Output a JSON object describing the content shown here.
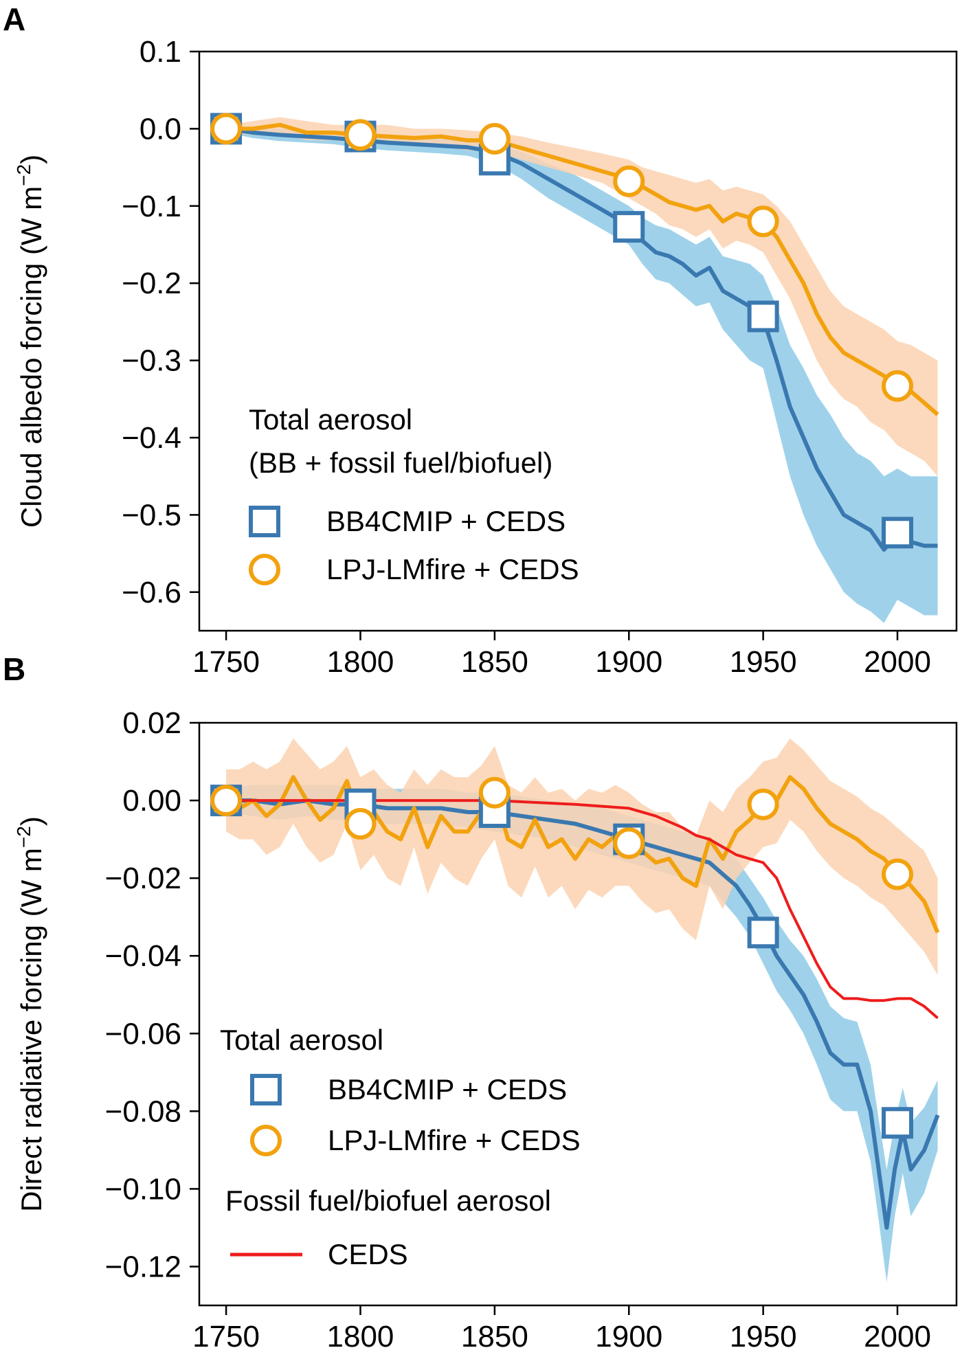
{
  "chart_data": [
    {
      "panel": "A",
      "type": "line",
      "ylabel": "Cloud albedo forcing (W m−2)",
      "ylabel_main": "Cloud albedo forcing (W m",
      "ylabel_unit_sup": "−2",
      "ylabel_close": ")",
      "xlim": [
        1740,
        2022
      ],
      "ylim": [
        -0.65,
        0.1
      ],
      "xticks": [
        1750,
        1800,
        1850,
        1900,
        1950,
        2000
      ],
      "xtick_labels": [
        "1750",
        "1800",
        "1850",
        "1900",
        "1950",
        "2000"
      ],
      "yticks": [
        0.1,
        0.0,
        -0.1,
        -0.2,
        -0.3,
        -0.4,
        -0.5,
        -0.6
      ],
      "ytick_labels": [
        "0.1",
        "0.0",
        "−0.1",
        "−0.2",
        "−0.3",
        "−0.4",
        "−0.5",
        "−0.6"
      ],
      "legend_title": [
        "Total aerosol",
        "(BB + fossil fuel/biofuel)"
      ],
      "series": [
        {
          "name": "BB4CMIP + CEDS",
          "color": "#3a78b0",
          "band_color": "#8ecae6",
          "marker": "square",
          "x": [
            1750,
            1760,
            1770,
            1780,
            1790,
            1800,
            1810,
            1820,
            1830,
            1840,
            1850,
            1860,
            1870,
            1880,
            1890,
            1900,
            1905,
            1910,
            1915,
            1920,
            1925,
            1930,
            1935,
            1940,
            1945,
            1950,
            1955,
            1960,
            1965,
            1970,
            1975,
            1980,
            1985,
            1990,
            1995,
            2000,
            2005,
            2010,
            2015
          ],
          "values": [
            0.0,
            -0.005,
            -0.008,
            -0.01,
            -0.012,
            -0.015,
            -0.018,
            -0.02,
            -0.022,
            -0.024,
            -0.03,
            -0.045,
            -0.065,
            -0.085,
            -0.105,
            -0.125,
            -0.145,
            -0.16,
            -0.165,
            -0.175,
            -0.19,
            -0.18,
            -0.21,
            -0.22,
            -0.23,
            -0.245,
            -0.3,
            -0.36,
            -0.4,
            -0.44,
            -0.47,
            -0.5,
            -0.51,
            -0.52,
            -0.545,
            -0.525,
            -0.535,
            -0.54,
            -0.54
          ],
          "upper": [
            0.0,
            0.0,
            0.0,
            -0.002,
            -0.004,
            -0.006,
            -0.008,
            -0.01,
            -0.012,
            -0.014,
            -0.02,
            -0.03,
            -0.045,
            -0.06,
            -0.08,
            -0.1,
            -0.115,
            -0.125,
            -0.13,
            -0.14,
            -0.15,
            -0.14,
            -0.165,
            -0.17,
            -0.175,
            -0.19,
            -0.23,
            -0.28,
            -0.31,
            -0.345,
            -0.37,
            -0.4,
            -0.42,
            -0.43,
            -0.45,
            -0.44,
            -0.45,
            -0.45,
            -0.45
          ],
          "lower": [
            -0.005,
            -0.012,
            -0.016,
            -0.018,
            -0.02,
            -0.025,
            -0.028,
            -0.03,
            -0.032,
            -0.035,
            -0.045,
            -0.065,
            -0.09,
            -0.11,
            -0.13,
            -0.15,
            -0.175,
            -0.195,
            -0.2,
            -0.215,
            -0.23,
            -0.225,
            -0.26,
            -0.28,
            -0.3,
            -0.31,
            -0.38,
            -0.45,
            -0.5,
            -0.54,
            -0.57,
            -0.6,
            -0.615,
            -0.625,
            -0.64,
            -0.61,
            -0.62,
            -0.63,
            -0.63
          ],
          "marker_x": [
            1750,
            1800,
            1850,
            1900,
            1950,
            2000
          ],
          "marker_y": [
            0.0,
            -0.01,
            -0.04,
            -0.127,
            -0.243,
            -0.523
          ]
        },
        {
          "name": "LPJ-LMfire + CEDS",
          "color": "#f2a20f",
          "band_color": "#fcd2b0",
          "marker": "circle",
          "x": [
            1750,
            1760,
            1770,
            1780,
            1790,
            1800,
            1810,
            1820,
            1830,
            1840,
            1850,
            1860,
            1870,
            1880,
            1890,
            1900,
            1905,
            1910,
            1915,
            1920,
            1925,
            1930,
            1935,
            1940,
            1945,
            1950,
            1955,
            1960,
            1965,
            1970,
            1975,
            1980,
            1985,
            1990,
            1995,
            2000,
            2005,
            2010,
            2015
          ],
          "values": [
            0.0,
            0.0,
            0.005,
            -0.005,
            -0.005,
            -0.008,
            -0.01,
            -0.012,
            -0.01,
            -0.015,
            -0.015,
            -0.025,
            -0.035,
            -0.045,
            -0.055,
            -0.065,
            -0.075,
            -0.085,
            -0.095,
            -0.1,
            -0.105,
            -0.1,
            -0.12,
            -0.11,
            -0.115,
            -0.12,
            -0.14,
            -0.17,
            -0.2,
            -0.24,
            -0.27,
            -0.29,
            -0.3,
            -0.31,
            -0.32,
            -0.335,
            -0.34,
            -0.355,
            -0.37
          ],
          "upper": [
            0.005,
            0.01,
            0.015,
            0.01,
            0.005,
            0.005,
            0.005,
            0.0,
            0.0,
            -0.002,
            -0.005,
            -0.01,
            -0.018,
            -0.025,
            -0.032,
            -0.04,
            -0.05,
            -0.055,
            -0.06,
            -0.065,
            -0.07,
            -0.065,
            -0.08,
            -0.075,
            -0.08,
            -0.085,
            -0.1,
            -0.12,
            -0.15,
            -0.18,
            -0.21,
            -0.23,
            -0.24,
            -0.25,
            -0.26,
            -0.275,
            -0.28,
            -0.29,
            -0.3
          ],
          "lower": [
            -0.005,
            -0.008,
            -0.005,
            -0.015,
            -0.015,
            -0.018,
            -0.02,
            -0.022,
            -0.022,
            -0.028,
            -0.03,
            -0.04,
            -0.05,
            -0.06,
            -0.07,
            -0.09,
            -0.1,
            -0.11,
            -0.125,
            -0.13,
            -0.14,
            -0.13,
            -0.155,
            -0.145,
            -0.15,
            -0.16,
            -0.19,
            -0.22,
            -0.26,
            -0.3,
            -0.33,
            -0.35,
            -0.36,
            -0.38,
            -0.39,
            -0.41,
            -0.42,
            -0.43,
            -0.45
          ],
          "marker_x": [
            1750,
            1800,
            1850,
            1900,
            1950,
            2000
          ],
          "marker_y": [
            0.0,
            -0.008,
            -0.013,
            -0.068,
            -0.12,
            -0.333
          ]
        }
      ]
    },
    {
      "panel": "B",
      "type": "line",
      "ylabel": "Direct radiative forcing (W m−2)",
      "ylabel_main": "Direct radiative forcing (W m",
      "ylabel_unit_sup": "−2",
      "ylabel_close": ")",
      "xlim": [
        1740,
        2022
      ],
      "ylim": [
        -0.13,
        0.02
      ],
      "xticks": [
        1750,
        1800,
        1850,
        1900,
        1950,
        2000
      ],
      "xtick_labels": [
        "1750",
        "1800",
        "1850",
        "1900",
        "1950",
        "2000"
      ],
      "yticks": [
        0.02,
        0.0,
        -0.02,
        -0.04,
        -0.06,
        -0.08,
        -0.1,
        -0.12
      ],
      "ytick_labels": [
        "0.02",
        "0.00",
        "−0.02",
        "−0.04",
        "−0.06",
        "−0.08",
        "−0.10",
        "−0.12"
      ],
      "legend_title": [
        "Total aerosol"
      ],
      "legend_title_2": "Fossil fuel/biofuel aerosol",
      "series": [
        {
          "name": "BB4CMIP + CEDS",
          "color": "#3a78b0",
          "band_color": "#8ecae6",
          "marker": "square",
          "x": [
            1750,
            1760,
            1770,
            1780,
            1790,
            1800,
            1810,
            1820,
            1830,
            1840,
            1850,
            1860,
            1870,
            1880,
            1890,
            1900,
            1910,
            1920,
            1930,
            1935,
            1940,
            1945,
            1950,
            1955,
            1960,
            1965,
            1970,
            1975,
            1980,
            1985,
            1990,
            1993,
            1996,
            1999,
            2002,
            2005,
            2010,
            2015
          ],
          "values": [
            0.0,
            0.0,
            -0.001,
            0.0,
            -0.001,
            -0.001,
            -0.002,
            -0.002,
            -0.002,
            -0.003,
            -0.003,
            -0.004,
            -0.005,
            -0.006,
            -0.008,
            -0.01,
            -0.012,
            -0.014,
            -0.016,
            -0.019,
            -0.022,
            -0.027,
            -0.033,
            -0.04,
            -0.045,
            -0.05,
            -0.057,
            -0.065,
            -0.068,
            -0.068,
            -0.08,
            -0.095,
            -0.11,
            -0.095,
            -0.085,
            -0.095,
            -0.09,
            -0.081
          ],
          "upper": [
            0.003,
            0.004,
            0.004,
            0.004,
            0.004,
            0.003,
            0.003,
            0.003,
            0.003,
            0.002,
            0.002,
            0.001,
            0.0,
            -0.001,
            -0.002,
            -0.004,
            -0.006,
            -0.008,
            -0.01,
            -0.012,
            -0.015,
            -0.02,
            -0.025,
            -0.031,
            -0.036,
            -0.04,
            -0.046,
            -0.053,
            -0.056,
            -0.057,
            -0.068,
            -0.082,
            -0.095,
            -0.083,
            -0.074,
            -0.083,
            -0.079,
            -0.072
          ],
          "lower": [
            -0.003,
            -0.004,
            -0.005,
            -0.004,
            -0.005,
            -0.005,
            -0.006,
            -0.006,
            -0.006,
            -0.007,
            -0.008,
            -0.009,
            -0.01,
            -0.012,
            -0.014,
            -0.016,
            -0.018,
            -0.02,
            -0.022,
            -0.026,
            -0.03,
            -0.035,
            -0.042,
            -0.049,
            -0.054,
            -0.06,
            -0.068,
            -0.077,
            -0.08,
            -0.08,
            -0.093,
            -0.108,
            -0.124,
            -0.107,
            -0.096,
            -0.107,
            -0.101,
            -0.09
          ],
          "marker_x": [
            1750,
            1800,
            1850,
            1900,
            1950,
            2000
          ],
          "marker_y": [
            0.0,
            -0.001,
            -0.003,
            -0.01,
            -0.034,
            -0.083
          ]
        },
        {
          "name": "LPJ-LMfire + CEDS",
          "color": "#f2a20f",
          "band_color": "#fcd2b0",
          "marker": "circle",
          "x": [
            1750,
            1755,
            1760,
            1765,
            1770,
            1775,
            1780,
            1785,
            1790,
            1795,
            1800,
            1805,
            1810,
            1815,
            1820,
            1825,
            1830,
            1835,
            1840,
            1845,
            1850,
            1855,
            1860,
            1865,
            1870,
            1875,
            1880,
            1885,
            1890,
            1895,
            1900,
            1905,
            1910,
            1915,
            1920,
            1925,
            1930,
            1935,
            1940,
            1945,
            1950,
            1955,
            1960,
            1965,
            1970,
            1975,
            1980,
            1985,
            1990,
            1995,
            2000,
            2005,
            2010,
            2015
          ],
          "values": [
            0.0,
            -0.002,
            0.0,
            -0.004,
            -0.001,
            0.006,
            0.0,
            -0.005,
            -0.002,
            0.005,
            -0.006,
            -0.003,
            -0.008,
            -0.01,
            -0.002,
            -0.012,
            -0.004,
            -0.008,
            -0.008,
            -0.003,
            0.002,
            -0.01,
            -0.012,
            -0.005,
            -0.012,
            -0.01,
            -0.015,
            -0.01,
            -0.012,
            -0.009,
            -0.01,
            -0.013,
            -0.016,
            -0.015,
            -0.02,
            -0.022,
            -0.01,
            -0.015,
            -0.008,
            -0.005,
            -0.001,
            0.0,
            0.006,
            0.003,
            -0.002,
            -0.006,
            -0.008,
            -0.01,
            -0.013,
            -0.015,
            -0.019,
            -0.022,
            -0.026,
            -0.034
          ],
          "upper": [
            0.008,
            0.008,
            0.01,
            0.008,
            0.01,
            0.016,
            0.012,
            0.008,
            0.01,
            0.014,
            0.006,
            0.008,
            0.004,
            0.002,
            0.008,
            0.004,
            0.008,
            0.006,
            0.006,
            0.009,
            0.014,
            0.004,
            0.002,
            0.006,
            0.002,
            0.003,
            0.0,
            0.003,
            0.002,
            0.004,
            0.002,
            -0.001,
            -0.003,
            -0.003,
            -0.007,
            -0.009,
            0.0,
            -0.003,
            0.003,
            0.006,
            0.01,
            0.011,
            0.016,
            0.013,
            0.009,
            0.005,
            0.003,
            0.001,
            -0.002,
            -0.004,
            -0.007,
            -0.01,
            -0.013,
            -0.02
          ],
          "lower": [
            -0.008,
            -0.01,
            -0.01,
            -0.014,
            -0.012,
            -0.006,
            -0.012,
            -0.016,
            -0.014,
            -0.006,
            -0.018,
            -0.014,
            -0.02,
            -0.022,
            -0.012,
            -0.024,
            -0.016,
            -0.02,
            -0.022,
            -0.015,
            -0.01,
            -0.022,
            -0.025,
            -0.017,
            -0.025,
            -0.022,
            -0.028,
            -0.023,
            -0.025,
            -0.022,
            -0.022,
            -0.026,
            -0.029,
            -0.028,
            -0.033,
            -0.036,
            -0.022,
            -0.028,
            -0.02,
            -0.016,
            -0.012,
            -0.011,
            -0.005,
            -0.008,
            -0.013,
            -0.017,
            -0.02,
            -0.022,
            -0.025,
            -0.027,
            -0.031,
            -0.035,
            -0.039,
            -0.045
          ],
          "marker_x": [
            1750,
            1800,
            1850,
            1900,
            1950,
            2000
          ],
          "marker_y": [
            0.0,
            -0.006,
            0.002,
            -0.011,
            -0.001,
            -0.019
          ]
        },
        {
          "name": "CEDS",
          "color": "#ee1c1c",
          "marker": "none",
          "x": [
            1750,
            1800,
            1850,
            1880,
            1900,
            1910,
            1920,
            1925,
            1930,
            1935,
            1940,
            1945,
            1950,
            1955,
            1960,
            1965,
            1970,
            1975,
            1980,
            1985,
            1990,
            1995,
            2000,
            2005,
            2010,
            2015
          ],
          "values": [
            0.0,
            0.0,
            0.0,
            -0.001,
            -0.002,
            -0.004,
            -0.007,
            -0.009,
            -0.01,
            -0.012,
            -0.014,
            -0.015,
            -0.016,
            -0.02,
            -0.028,
            -0.035,
            -0.042,
            -0.048,
            -0.051,
            -0.051,
            -0.0515,
            -0.0515,
            -0.051,
            -0.051,
            -0.053,
            -0.056
          ]
        }
      ]
    }
  ]
}
